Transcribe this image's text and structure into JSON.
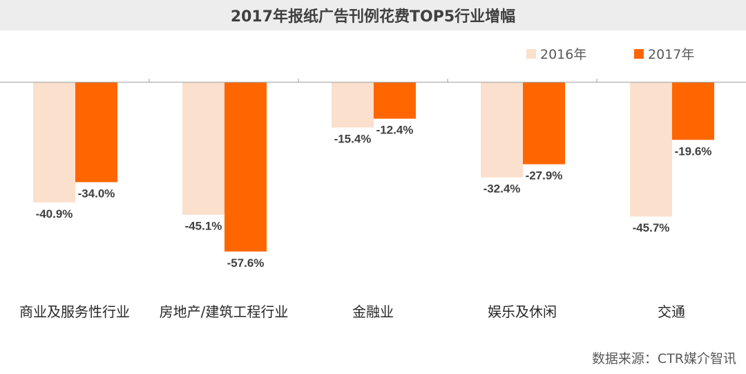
{
  "title": "2017年报纸广告刊例花费TOP5行业增幅",
  "source": "数据来源：CTR媒介智讯",
  "chart_data": {
    "type": "bar",
    "categories": [
      "商业及服务性行业",
      "房地产/建筑工程行业",
      "金融业",
      "娱乐及休闲",
      "交通"
    ],
    "series": [
      {
        "name": "2016年",
        "color": "#fbe0cd",
        "values": [
          -40.9,
          -45.1,
          -15.4,
          -32.4,
          -45.7
        ],
        "labels": [
          "-40.9%",
          "-45.1%",
          "-15.4%",
          "-32.4%",
          "-45.7%"
        ]
      },
      {
        "name": "2017年",
        "color": "#ff6600",
        "values": [
          -34.0,
          -57.6,
          -12.4,
          -27.9,
          -19.6
        ],
        "labels": [
          "-34.0%",
          "-57.6%",
          "-12.4%",
          "-27.9%",
          "-19.6%"
        ]
      }
    ],
    "ylim": [
      -60,
      0
    ],
    "legend": "top-right",
    "grid": false
  }
}
